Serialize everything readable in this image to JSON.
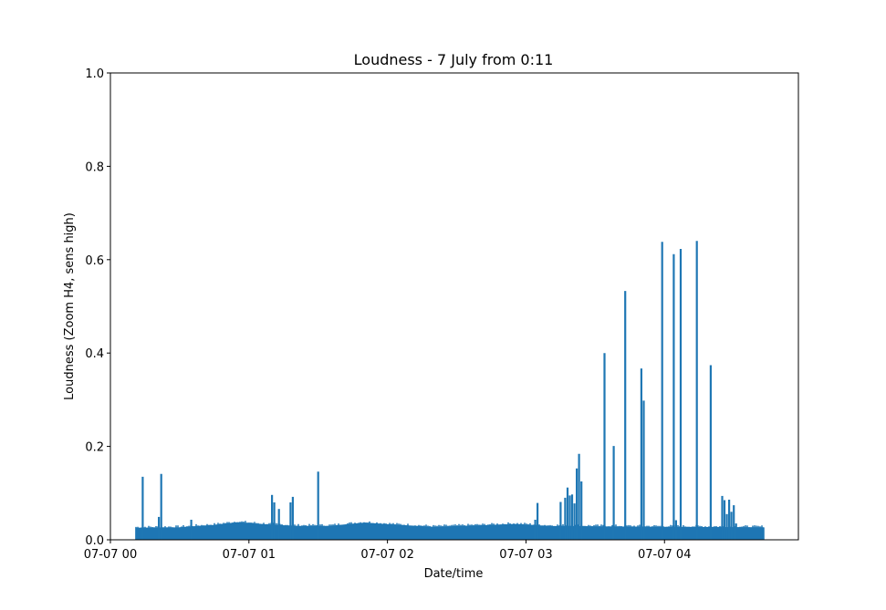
{
  "chart_data": {
    "type": "line",
    "title": "Loudness - 7 July from 0:11",
    "xlabel": "Date/time",
    "ylabel": "Loudness (Zoom H4, sens high)",
    "xlim": [
      "2024-07-07 00:00",
      "2024-07-07 04:58"
    ],
    "ylim": [
      0,
      1
    ],
    "grid": false,
    "legend": "none",
    "x_ticks": [
      {
        "value": "2024-07-07 00:00",
        "label": "07-07 00"
      },
      {
        "value": "2024-07-07 01:00",
        "label": "07-07 01"
      },
      {
        "value": "2024-07-07 02:00",
        "label": "07-07 02"
      },
      {
        "value": "2024-07-07 03:00",
        "label": "07-07 03"
      },
      {
        "value": "2024-07-07 04:00",
        "label": "07-07 04"
      }
    ],
    "y_ticks": [
      {
        "value": 0.0,
        "label": "0.0"
      },
      {
        "value": 0.2,
        "label": "0.2"
      },
      {
        "value": 0.4,
        "label": "0.4"
      },
      {
        "value": 0.6,
        "label": "0.6"
      },
      {
        "value": 0.8,
        "label": "0.8"
      },
      {
        "value": 1.0,
        "label": "1.0"
      }
    ],
    "series": [
      {
        "color": "#1f77b4",
        "band_start": "2024-07-07 00:11",
        "band_end": "2024-07-07 04:43",
        "baseline": [
          {
            "x": "2024-07-07 00:11",
            "y": 0.025
          },
          {
            "x": "2024-07-07 00:30",
            "y": 0.026
          },
          {
            "x": "2024-07-07 00:45",
            "y": 0.031
          },
          {
            "x": "2024-07-07 00:55",
            "y": 0.037
          },
          {
            "x": "2024-07-07 01:05",
            "y": 0.033
          },
          {
            "x": "2024-07-07 01:20",
            "y": 0.029
          },
          {
            "x": "2024-07-07 01:35",
            "y": 0.029
          },
          {
            "x": "2024-07-07 01:50",
            "y": 0.036
          },
          {
            "x": "2024-07-07 02:05",
            "y": 0.031
          },
          {
            "x": "2024-07-07 02:20",
            "y": 0.027
          },
          {
            "x": "2024-07-07 02:40",
            "y": 0.03
          },
          {
            "x": "2024-07-07 02:55",
            "y": 0.033
          },
          {
            "x": "2024-07-07 03:10",
            "y": 0.029
          },
          {
            "x": "2024-07-07 03:30",
            "y": 0.028
          },
          {
            "x": "2024-07-07 04:00",
            "y": 0.027
          },
          {
            "x": "2024-07-07 04:43",
            "y": 0.026
          }
        ],
        "spikes": [
          {
            "x": "2024-07-07 00:14",
            "y": 0.135
          },
          {
            "x": "2024-07-07 00:21",
            "y": 0.049
          },
          {
            "x": "2024-07-07 00:22",
            "y": 0.141
          },
          {
            "x": "2024-07-07 00:35",
            "y": 0.043
          },
          {
            "x": "2024-07-07 01:10",
            "y": 0.096
          },
          {
            "x": "2024-07-07 01:11",
            "y": 0.08
          },
          {
            "x": "2024-07-07 01:13",
            "y": 0.066
          },
          {
            "x": "2024-07-07 01:18",
            "y": 0.08
          },
          {
            "x": "2024-07-07 01:19",
            "y": 0.092
          },
          {
            "x": "2024-07-07 01:30",
            "y": 0.146
          },
          {
            "x": "2024-07-07 03:04",
            "y": 0.043
          },
          {
            "x": "2024-07-07 03:05",
            "y": 0.079
          },
          {
            "x": "2024-07-07 03:15",
            "y": 0.081
          },
          {
            "x": "2024-07-07 03:17",
            "y": 0.09
          },
          {
            "x": "2024-07-07 03:18",
            "y": 0.112
          },
          {
            "x": "2024-07-07 03:19",
            "y": 0.095
          },
          {
            "x": "2024-07-07 03:20",
            "y": 0.097
          },
          {
            "x": "2024-07-07 03:21",
            "y": 0.078
          },
          {
            "x": "2024-07-07 03:22",
            "y": 0.153
          },
          {
            "x": "2024-07-07 03:23",
            "y": 0.184
          },
          {
            "x": "2024-07-07 03:24",
            "y": 0.125
          },
          {
            "x": "2024-07-07 03:34",
            "y": 0.4
          },
          {
            "x": "2024-07-07 03:38",
            "y": 0.201
          },
          {
            "x": "2024-07-07 03:43",
            "y": 0.533
          },
          {
            "x": "2024-07-07 03:50",
            "y": 0.367
          },
          {
            "x": "2024-07-07 03:51",
            "y": 0.298
          },
          {
            "x": "2024-07-07 03:59",
            "y": 0.638
          },
          {
            "x": "2024-07-07 04:04",
            "y": 0.612
          },
          {
            "x": "2024-07-07 04:05",
            "y": 0.042
          },
          {
            "x": "2024-07-07 04:07",
            "y": 0.623
          },
          {
            "x": "2024-07-07 04:14",
            "y": 0.64
          },
          {
            "x": "2024-07-07 04:20",
            "y": 0.374
          },
          {
            "x": "2024-07-07 04:25",
            "y": 0.094
          },
          {
            "x": "2024-07-07 04:26",
            "y": 0.085
          },
          {
            "x": "2024-07-07 04:27",
            "y": 0.055
          },
          {
            "x": "2024-07-07 04:28",
            "y": 0.086
          },
          {
            "x": "2024-07-07 04:29",
            "y": 0.06
          },
          {
            "x": "2024-07-07 04:30",
            "y": 0.074
          },
          {
            "x": "2024-07-07 04:31",
            "y": 0.035
          }
        ]
      }
    ]
  }
}
